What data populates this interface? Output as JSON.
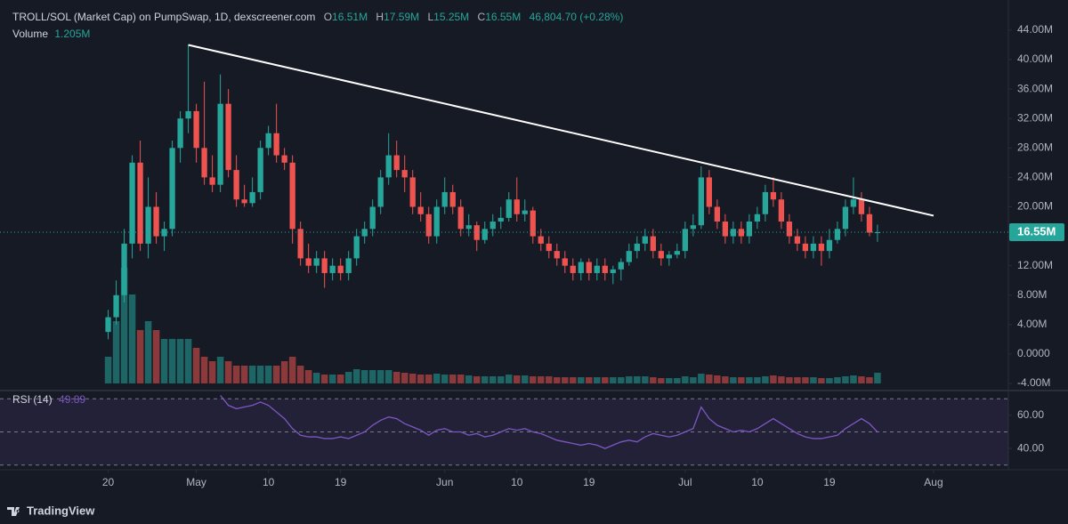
{
  "header": {
    "title": "TROLL/SOL (Market Cap) on PumpSwap, 1D, dexscreener.com",
    "o_label": "O",
    "open": "16.51M",
    "h_label": "H",
    "high": "17.59M",
    "l_label": "L",
    "low": "15.25M",
    "c_label": "C",
    "close": "16.55M",
    "change": "46,804.70 (+0.28%)",
    "volume_label": "Volume",
    "volume": "1.205M"
  },
  "chart_data": {
    "type": "candlestick",
    "candles": [
      [
        3,
        6,
        2,
        5
      ],
      [
        5,
        10,
        4,
        8
      ],
      [
        8,
        17,
        7,
        15
      ],
      [
        15,
        27,
        13,
        26
      ],
      [
        26,
        29,
        14,
        15
      ],
      [
        15,
        24,
        13,
        20
      ],
      [
        20,
        22,
        15,
        16
      ],
      [
        16,
        18,
        14,
        17
      ],
      [
        17,
        29,
        16,
        28
      ],
      [
        28,
        33,
        26,
        32
      ],
      [
        32,
        42,
        30,
        33
      ],
      [
        33,
        34,
        26,
        28
      ],
      [
        28,
        37,
        23,
        24
      ],
      [
        24,
        27,
        22,
        23
      ],
      [
        23,
        38,
        22,
        34
      ],
      [
        34,
        36,
        24,
        25
      ],
      [
        25,
        27,
        20,
        21
      ],
      [
        21,
        23,
        20,
        20.5
      ],
      [
        20.5,
        24,
        20,
        22
      ],
      [
        22,
        29,
        21,
        28
      ],
      [
        28,
        31,
        27,
        30
      ],
      [
        30,
        34,
        26,
        27
      ],
      [
        27,
        28,
        25,
        26
      ],
      [
        26,
        27,
        15,
        17
      ],
      [
        17,
        18,
        12,
        13
      ],
      [
        13,
        15,
        11,
        12
      ],
      [
        12,
        14,
        11,
        13
      ],
      [
        13,
        14,
        9,
        11
      ],
      [
        11,
        13,
        10,
        12
      ],
      [
        12,
        13,
        10,
        11
      ],
      [
        11,
        14,
        10,
        13
      ],
      [
        13,
        17,
        12,
        16
      ],
      [
        16,
        18,
        15,
        17
      ],
      [
        17,
        21,
        16,
        20
      ],
      [
        20,
        25,
        19,
        24
      ],
      [
        24,
        30,
        23,
        27
      ],
      [
        27,
        29,
        24,
        25
      ],
      [
        25,
        27,
        22,
        24
      ],
      [
        24,
        25,
        19,
        20
      ],
      [
        20,
        22,
        18,
        19
      ],
      [
        19,
        20,
        15,
        16
      ],
      [
        16,
        21,
        15,
        20
      ],
      [
        20,
        24,
        19,
        22
      ],
      [
        22,
        23,
        19,
        20
      ],
      [
        20,
        21,
        16,
        17
      ],
      [
        17,
        19,
        16,
        17.5
      ],
      [
        17.5,
        18,
        14,
        15.5
      ],
      [
        15.5,
        18,
        15,
        17
      ],
      [
        17,
        19,
        16,
        18
      ],
      [
        18,
        20,
        17,
        18.5
      ],
      [
        18.5,
        22,
        18,
        21
      ],
      [
        21,
        24,
        18,
        19
      ],
      [
        19,
        21,
        18,
        19.5
      ],
      [
        19.5,
        20,
        15,
        16
      ],
      [
        16,
        17,
        14,
        15
      ],
      [
        15,
        16,
        13,
        14
      ],
      [
        14,
        15,
        12,
        13
      ],
      [
        13,
        14,
        11,
        12
      ],
      [
        12,
        13,
        10,
        11
      ],
      [
        11,
        13,
        10,
        12.5
      ],
      [
        12.5,
        13,
        10,
        11
      ],
      [
        11,
        13,
        10,
        12
      ],
      [
        12,
        13,
        10,
        11
      ],
      [
        11,
        12,
        9.5,
        11.5
      ],
      [
        11.5,
        13,
        10,
        12.5
      ],
      [
        12.5,
        15,
        12,
        14
      ],
      [
        14,
        16,
        13,
        15
      ],
      [
        15,
        17,
        14,
        16
      ],
      [
        16,
        17,
        13,
        14
      ],
      [
        14,
        15,
        12,
        13
      ],
      [
        13,
        14,
        12,
        13.5
      ],
      [
        13.5,
        15,
        13,
        14
      ],
      [
        14,
        18,
        13,
        17
      ],
      [
        17,
        19,
        16,
        17.5
      ],
      [
        17.5,
        25.5,
        17,
        24
      ],
      [
        24,
        25,
        19,
        20
      ],
      [
        20,
        21,
        17,
        18
      ],
      [
        18,
        19,
        15,
        16
      ],
      [
        16,
        18,
        15,
        17
      ],
      [
        17,
        18,
        15,
        16
      ],
      [
        16,
        19,
        15,
        18
      ],
      [
        18,
        20,
        17,
        19
      ],
      [
        19,
        23,
        18,
        22
      ],
      [
        22,
        24,
        20,
        21
      ],
      [
        21,
        22,
        17,
        18
      ],
      [
        18,
        19,
        15,
        16
      ],
      [
        16,
        17,
        14,
        15
      ],
      [
        15,
        16,
        13,
        14
      ],
      [
        14,
        16,
        13,
        15
      ],
      [
        15,
        16,
        12,
        14
      ],
      [
        14,
        17,
        13,
        15.5
      ],
      [
        15.5,
        18,
        15,
        17
      ],
      [
        17,
        21,
        16,
        20
      ],
      [
        20,
        24,
        19,
        21
      ],
      [
        21,
        22,
        18,
        19
      ],
      [
        19,
        20,
        16,
        16.5
      ],
      [
        16.51,
        17.59,
        15.25,
        16.55
      ]
    ],
    "volume": [
      3,
      7,
      13,
      10,
      6,
      7,
      6,
      5,
      5,
      5,
      5,
      4,
      3,
      2.5,
      3,
      2.5,
      2,
      2,
      2,
      2,
      2,
      2,
      2.5,
      3,
      2,
      1.5,
      1.2,
      1,
      1,
      1,
      1.3,
      1.6,
      1.5,
      1.5,
      1.5,
      1.5,
      1.3,
      1.2,
      1.1,
      1,
      1,
      1.1,
      1,
      1,
      1,
      0.9,
      0.8,
      0.8,
      0.8,
      0.8,
      1,
      0.9,
      0.9,
      0.8,
      0.8,
      0.8,
      0.7,
      0.7,
      0.7,
      0.7,
      0.7,
      0.7,
      0.7,
      0.7,
      0.7,
      0.8,
      0.8,
      0.8,
      0.7,
      0.6,
      0.6,
      0.6,
      0.8,
      0.7,
      1.1,
      1,
      0.9,
      0.8,
      0.7,
      0.7,
      0.7,
      0.7,
      0.8,
      0.9,
      0.8,
      0.7,
      0.7,
      0.7,
      0.7,
      0.6,
      0.6,
      0.7,
      0.8,
      0.9,
      0.8,
      0.7,
      1.205
    ],
    "up_color": "#26a69a",
    "down_color": "#ef5350",
    "xlim": [
      -13.5,
      112
    ],
    "xticks": [
      {
        "value": 0,
        "label": "20"
      },
      {
        "value": 11,
        "label": "May"
      },
      {
        "value": 20,
        "label": "10"
      },
      {
        "value": 29,
        "label": "19"
      },
      {
        "value": 42,
        "label": "Jun"
      },
      {
        "value": 51,
        "label": "10"
      },
      {
        "value": 60,
        "label": "19"
      },
      {
        "value": 72,
        "label": "Jul"
      },
      {
        "value": 81,
        "label": "10"
      },
      {
        "value": 90,
        "label": "19"
      },
      {
        "value": 103,
        "label": "Aug"
      }
    ],
    "ylim": [
      -4.84,
      48.1
    ],
    "yticks": [
      {
        "value": -4,
        "label": "-4.00M"
      },
      {
        "value": 0,
        "label": "0.0000"
      },
      {
        "value": 4,
        "label": "4.00M"
      },
      {
        "value": 8,
        "label": "8.00M"
      },
      {
        "value": 12,
        "label": "12.00M"
      },
      {
        "value": 16,
        "label": "16.00M"
      },
      {
        "value": 20,
        "label": "20.00M"
      },
      {
        "value": 24,
        "label": "24.00M"
      },
      {
        "value": 28,
        "label": "28.00M"
      },
      {
        "value": 32,
        "label": "32.00M"
      },
      {
        "value": 36,
        "label": "36.00M"
      },
      {
        "value": 40,
        "label": "40.00M"
      },
      {
        "value": 44,
        "label": "44.00M"
      }
    ],
    "last_price": {
      "value": 16.55,
      "label": "16.55M"
    },
    "trendline": {
      "x": [
        10,
        103
      ],
      "y": [
        42,
        18.8
      ],
      "color": "#ffffff"
    },
    "rsi": {
      "name": "RSI (14)",
      "value_label": "49.89",
      "color": "#7e57c2",
      "ylim": [
        27.2,
        74.4
      ],
      "yticks": [
        {
          "value": 60,
          "label": "60.00"
        },
        {
          "value": 40,
          "label": "40.00"
        }
      ],
      "levels": [
        70,
        50,
        30
      ],
      "values": [
        null,
        null,
        null,
        null,
        null,
        null,
        null,
        null,
        null,
        null,
        null,
        null,
        null,
        null,
        72,
        66,
        64,
        65,
        66,
        68,
        66,
        62,
        58,
        52,
        48,
        47,
        47,
        46,
        46,
        47,
        46,
        48,
        50,
        54,
        57,
        59,
        58,
        55,
        53,
        51,
        48,
        51,
        52,
        50,
        50,
        48,
        49,
        47,
        48,
        50,
        52,
        51,
        52,
        50,
        49,
        47,
        45,
        44,
        43,
        42,
        43,
        42,
        40,
        42,
        44,
        45,
        44,
        47,
        49,
        48,
        47,
        48,
        50,
        52,
        65,
        58,
        54,
        52,
        50,
        51,
        50,
        52,
        55,
        58,
        55,
        52,
        49,
        47,
        46,
        46,
        47,
        48,
        52,
        55,
        58,
        55,
        49.89
      ]
    }
  },
  "footer": {
    "brand": "TradingView"
  }
}
